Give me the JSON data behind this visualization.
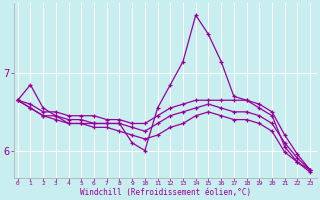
{
  "xlabel": "Windchill (Refroidissement éolien,°C)",
  "bg_color": "#c8eef0",
  "line_color": "#990099",
  "grid_color": "#ffffff",
  "x_ticks": [
    0,
    1,
    2,
    3,
    4,
    5,
    6,
    7,
    8,
    9,
    10,
    11,
    12,
    13,
    14,
    15,
    16,
    17,
    18,
    19,
    20,
    21,
    22,
    23
  ],
  "y_ticks": [
    6,
    7
  ],
  "xlim": [
    -0.3,
    23.5
  ],
  "ylim": [
    5.65,
    7.9
  ],
  "series": [
    [
      6.65,
      6.85,
      6.55,
      6.45,
      6.35,
      6.35,
      6.35,
      6.35,
      6.35,
      6.1,
      6.0,
      6.55,
      6.85,
      7.15,
      7.75,
      7.5,
      7.15,
      6.7,
      6.65,
      6.55,
      6.45,
      6.05,
      5.85,
      5.75
    ],
    [
      6.65,
      6.6,
      6.5,
      6.5,
      6.45,
      6.45,
      6.45,
      6.4,
      6.4,
      6.35,
      6.35,
      6.45,
      6.55,
      6.6,
      6.65,
      6.65,
      6.65,
      6.65,
      6.65,
      6.6,
      6.5,
      6.2,
      5.95,
      5.75
    ],
    [
      6.65,
      6.55,
      6.45,
      6.45,
      6.4,
      6.4,
      6.35,
      6.35,
      6.35,
      6.3,
      6.25,
      6.35,
      6.45,
      6.5,
      6.55,
      6.6,
      6.55,
      6.5,
      6.5,
      6.45,
      6.35,
      6.1,
      5.9,
      5.75
    ],
    [
      6.65,
      6.55,
      6.45,
      6.4,
      6.35,
      6.35,
      6.3,
      6.3,
      6.25,
      6.2,
      6.15,
      6.2,
      6.3,
      6.35,
      6.45,
      6.5,
      6.45,
      6.4,
      6.4,
      6.35,
      6.25,
      5.98,
      5.85,
      5.72
    ]
  ]
}
